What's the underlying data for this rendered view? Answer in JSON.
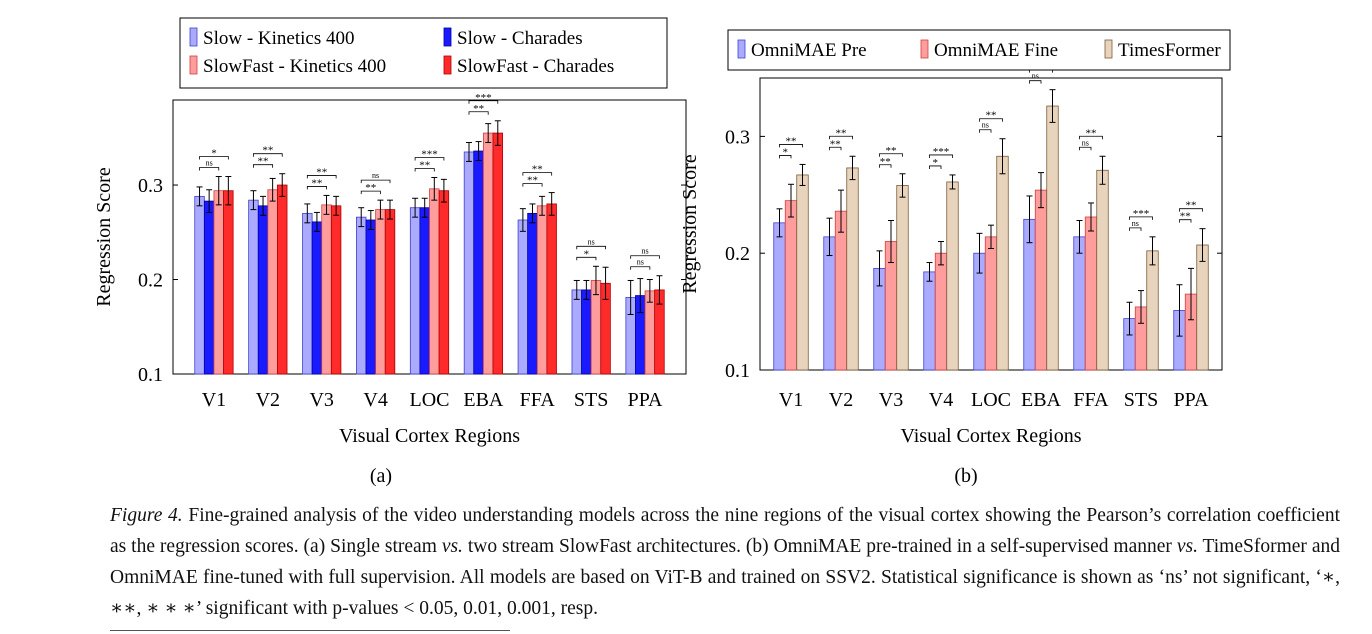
{
  "chart_data": [
    {
      "type": "bar",
      "panel_label": "(a)",
      "xlabel": "Visual Cortex Regions",
      "ylabel": "Regression Score",
      "ylim": [
        0.1,
        0.39
      ],
      "yticks": [
        "0.1",
        "0.2",
        "0.3"
      ],
      "ytick_values": [
        0.1,
        0.2,
        0.3
      ],
      "legend_position": "top, outside, 2 columns",
      "categories": [
        "V1",
        "V2",
        "V3",
        "V4",
        "LOC",
        "EBA",
        "FFA",
        "STS",
        "PPA"
      ],
      "series": [
        {
          "name": "Slow - Kinetics 400",
          "color": "#aaaaff",
          "stroke": "#4040d0",
          "values": [
            0.288,
            0.284,
            0.27,
            0.266,
            0.276,
            0.335,
            0.263,
            0.189,
            0.181
          ],
          "errors": [
            0.01,
            0.01,
            0.01,
            0.01,
            0.01,
            0.01,
            0.012,
            0.01,
            0.018
          ]
        },
        {
          "name": "Slow - Charades",
          "color": "#1a1aff",
          "stroke": "#0000a0",
          "values": [
            0.283,
            0.278,
            0.261,
            0.263,
            0.276,
            0.336,
            0.27,
            0.189,
            0.183
          ],
          "errors": [
            0.012,
            0.01,
            0.01,
            0.01,
            0.01,
            0.01,
            0.01,
            0.01,
            0.018
          ]
        },
        {
          "name": "SlowFast - Kinetics 400",
          "color": "#ff9c9c",
          "stroke": "#d04040",
          "values": [
            0.294,
            0.295,
            0.279,
            0.274,
            0.296,
            0.355,
            0.278,
            0.199,
            0.188
          ],
          "errors": [
            0.015,
            0.012,
            0.01,
            0.01,
            0.012,
            0.01,
            0.01,
            0.015,
            0.012
          ]
        },
        {
          "name": "SlowFast - Charades",
          "color": "#ff2a2a",
          "stroke": "#b00000",
          "values": [
            0.294,
            0.3,
            0.278,
            0.274,
            0.294,
            0.355,
            0.28,
            0.196,
            0.189
          ],
          "errors": [
            0.015,
            0.012,
            0.01,
            0.01,
            0.012,
            0.013,
            0.012,
            0.017,
            0.015
          ]
        }
      ],
      "significance": [
        {
          "category": "V1",
          "marks": [
            "ns",
            "*"
          ]
        },
        {
          "category": "V2",
          "marks": [
            "**",
            "**"
          ]
        },
        {
          "category": "V3",
          "marks": [
            "**",
            "**"
          ]
        },
        {
          "category": "V4",
          "marks": [
            "**",
            "ns"
          ]
        },
        {
          "category": "LOC",
          "marks": [
            "**",
            "***"
          ]
        },
        {
          "category": "EBA",
          "marks": [
            "**",
            "***"
          ]
        },
        {
          "category": "FFA",
          "marks": [
            "**",
            "**"
          ]
        },
        {
          "category": "STS",
          "marks": [
            "*",
            "ns"
          ]
        },
        {
          "category": "PPA",
          "marks": [
            "ns",
            "ns"
          ]
        }
      ]
    },
    {
      "type": "bar",
      "panel_label": "(b)",
      "xlabel": "Visual Cortex Regions",
      "ylabel": "Regression Score",
      "ylim": [
        0.1,
        0.35
      ],
      "yticks": [
        "0.1",
        "0.2",
        "0.3"
      ],
      "ytick_values": [
        0.1,
        0.2,
        0.3
      ],
      "legend_position": "top, outside, 1 row",
      "categories": [
        "V1",
        "V2",
        "V3",
        "V4",
        "LOC",
        "EBA",
        "FFA",
        "STS",
        "PPA"
      ],
      "series": [
        {
          "name": "OmniMAE Pre",
          "color": "#aaaaff",
          "stroke": "#4040d0",
          "values": [
            0.226,
            0.214,
            0.187,
            0.184,
            0.2,
            0.229,
            0.214,
            0.144,
            0.151
          ],
          "errors": [
            0.012,
            0.016,
            0.015,
            0.008,
            0.017,
            0.02,
            0.014,
            0.014,
            0.022
          ]
        },
        {
          "name": "OmniMAE Fine",
          "color": "#ff9c9c",
          "stroke": "#d04040",
          "values": [
            0.245,
            0.236,
            0.21,
            0.2,
            0.214,
            0.254,
            0.231,
            0.154,
            0.165
          ],
          "errors": [
            0.014,
            0.018,
            0.018,
            0.01,
            0.01,
            0.015,
            0.012,
            0.014,
            0.022
          ]
        },
        {
          "name": "TimesFormer",
          "color": "#e8d4bc",
          "stroke": "#7a5a3a",
          "values": [
            0.267,
            0.273,
            0.258,
            0.261,
            0.283,
            0.326,
            0.271,
            0.202,
            0.207
          ],
          "errors": [
            0.009,
            0.01,
            0.01,
            0.006,
            0.015,
            0.014,
            0.012,
            0.012,
            0.014
          ]
        }
      ],
      "significance": [
        {
          "category": "V1",
          "marks": [
            "*",
            "**"
          ]
        },
        {
          "category": "V2",
          "marks": [
            "**",
            "**"
          ]
        },
        {
          "category": "V3",
          "marks": [
            "**",
            "**"
          ]
        },
        {
          "category": "V4",
          "marks": [
            "*",
            "***"
          ]
        },
        {
          "category": "LOC",
          "marks": [
            "ns",
            "**"
          ]
        },
        {
          "category": "EBA",
          "marks": [
            "ns",
            "***"
          ]
        },
        {
          "category": "FFA",
          "marks": [
            "ns",
            "**"
          ]
        },
        {
          "category": "STS",
          "marks": [
            "ns",
            "***"
          ]
        },
        {
          "category": "PPA",
          "marks": [
            "**",
            "**"
          ]
        }
      ]
    }
  ],
  "caption": {
    "label": "Figure 4.",
    "s1": " Fine-grained analysis of the video understanding models across the nine regions of the visual cortex showing the Pearson’s correlation coefficient as the regression scores. (a) Single stream ",
    "vs1": "vs.",
    "s2": " two stream SlowFast architectures. (b) OmniMAE pre-trained in a self-supervised manner ",
    "vs2": "vs.",
    "s3": " TimeSformer and OmniMAE fine-tuned with full supervision. All models are based on ViT-B and trained on SSV2. Statistical significance is shown as ‘ns’ not significant, ‘∗, ∗∗, ∗ ∗ ∗’ significant with p-values < 0.05, 0.01, 0.001, resp."
  }
}
